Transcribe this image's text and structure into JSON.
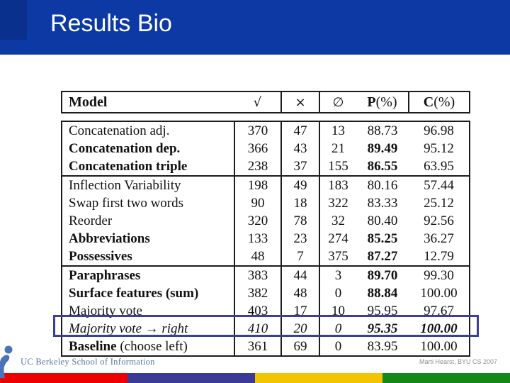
{
  "slide": {
    "title": "Results Bio",
    "credit": "Marti Hearst, BYU CS 2007",
    "logo_text": "UC Berkeley School of Information"
  },
  "colors": {
    "header_blue": "#0c39a3",
    "header_blue_dark": "#09308c",
    "highlight_box_blue": "#3a3f9c",
    "table_line": "#1c1c1c",
    "logo_blue": "#4a74b8",
    "logo_text_blue": "#56799f",
    "credit_gray": "#8f8f8f",
    "bar_red": "#ec0000",
    "bar_indigo": "#3b3a96",
    "bar_gold": "#f3c400",
    "bar_green": "#12871a"
  },
  "table": {
    "header": {
      "model": "Model",
      "check": "√",
      "cross": "×",
      "empty": "∅",
      "p": "P",
      "p_suffix": "(%)",
      "c": "C",
      "c_suffix": "(%)"
    },
    "rows": [
      {
        "model_bold": "",
        "model_rest": "Concatenation adj.",
        "check": "370",
        "cross": "47",
        "empty": "13",
        "p": "88.73",
        "p_bold": false,
        "c": "96.98",
        "c_bold": false,
        "italic": false,
        "section_end": false,
        "highlight": false
      },
      {
        "model_bold": "Concatenation dep.",
        "model_rest": "",
        "check": "366",
        "cross": "43",
        "empty": "21",
        "p": "89.49",
        "p_bold": true,
        "c": "95.12",
        "c_bold": false,
        "italic": false,
        "section_end": false,
        "highlight": false
      },
      {
        "model_bold": "Concatenation triple",
        "model_rest": "",
        "check": "238",
        "cross": "37",
        "empty": "155",
        "p": "86.55",
        "p_bold": true,
        "c": "63.95",
        "c_bold": false,
        "italic": false,
        "section_end": true,
        "highlight": false
      },
      {
        "model_bold": "",
        "model_rest": "Inflection Variability",
        "check": "198",
        "cross": "49",
        "empty": "183",
        "p": "80.16",
        "p_bold": false,
        "c": "57.44",
        "c_bold": false,
        "italic": false,
        "section_end": false,
        "highlight": false
      },
      {
        "model_bold": "",
        "model_rest": "Swap first two words",
        "check": "90",
        "cross": "18",
        "empty": "322",
        "p": "83.33",
        "p_bold": false,
        "c": "25.12",
        "c_bold": false,
        "italic": false,
        "section_end": false,
        "highlight": false
      },
      {
        "model_bold": "",
        "model_rest": "Reorder",
        "check": "320",
        "cross": "78",
        "empty": "32",
        "p": "80.40",
        "p_bold": false,
        "c": "92.56",
        "c_bold": false,
        "italic": false,
        "section_end": false,
        "highlight": false
      },
      {
        "model_bold": "Abbreviations",
        "model_rest": "",
        "check": "133",
        "cross": "23",
        "empty": "274",
        "p": "85.25",
        "p_bold": true,
        "c": "36.27",
        "c_bold": false,
        "italic": false,
        "section_end": false,
        "highlight": false
      },
      {
        "model_bold": "Possessives",
        "model_rest": "",
        "check": "48",
        "cross": "7",
        "empty": "375",
        "p": "87.27",
        "p_bold": true,
        "c": "12.79",
        "c_bold": false,
        "italic": false,
        "section_end": true,
        "highlight": false
      },
      {
        "model_bold": "Paraphrases",
        "model_rest": "",
        "check": "383",
        "cross": "44",
        "empty": "3",
        "p": "89.70",
        "p_bold": true,
        "c": "99.30",
        "c_bold": false,
        "italic": false,
        "section_end": false,
        "highlight": false
      },
      {
        "model_bold": "Surface features (sum)",
        "model_rest": "",
        "check": "382",
        "cross": "48",
        "empty": "0",
        "p": "88.84",
        "p_bold": true,
        "c": "100.00",
        "c_bold": false,
        "italic": false,
        "section_end": false,
        "highlight": false
      },
      {
        "model_bold": "",
        "model_rest": "Majority vote",
        "check": "403",
        "cross": "17",
        "empty": "10",
        "p": "95.95",
        "p_bold": false,
        "c": "97.67",
        "c_bold": false,
        "italic": false,
        "section_end": false,
        "highlight": false
      },
      {
        "model_bold": "",
        "model_rest": "Majority vote → right",
        "check": "410",
        "cross": "20",
        "empty": "0",
        "p": "95.35",
        "p_bold": true,
        "c": "100.00",
        "c_bold": true,
        "italic": true,
        "section_end": false,
        "highlight": true
      },
      {
        "model_bold": "Baseline",
        "model_rest": " (choose left)",
        "check": "361",
        "cross": "69",
        "empty": "0",
        "p": "83.95",
        "p_bold": false,
        "c": "100.00",
        "c_bold": false,
        "italic": false,
        "section_end": false,
        "highlight": false
      }
    ]
  }
}
